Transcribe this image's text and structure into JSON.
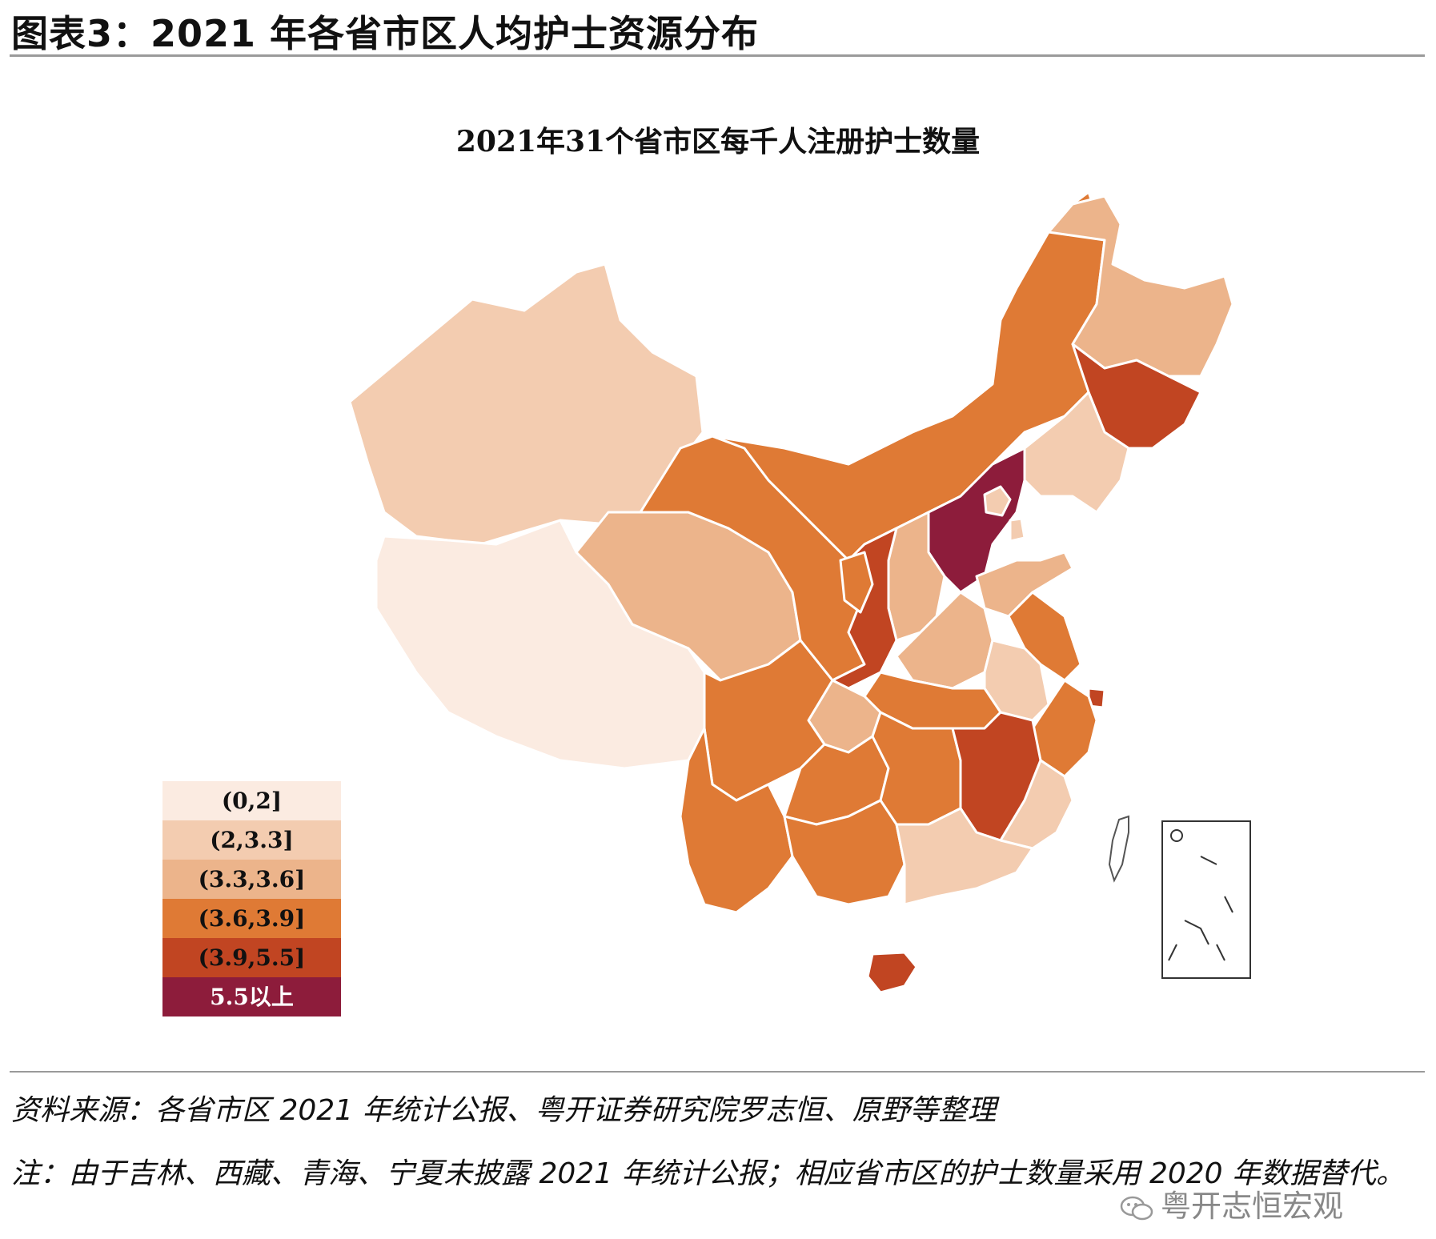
{
  "figure": {
    "title": "图表3：2021 年各省市区人均护士资源分布"
  },
  "map": {
    "title": "2021年31个省市区每千人注册护士数量",
    "legend": [
      {
        "label": "(0,2]",
        "color": "#fbebe1"
      },
      {
        "label": "(2,3.3]",
        "color": "#f3ccb0"
      },
      {
        "label": "(3.3,3.6]",
        "color": "#ecb48b"
      },
      {
        "label": "(3.6,3.9]",
        "color": "#df7a35"
      },
      {
        "label": "(3.9,5.5]",
        "color": "#c14522"
      },
      {
        "label": "5.5以上",
        "color": "#8d1c3b"
      }
    ],
    "regions": [
      {
        "name": "新疆",
        "class": 1
      },
      {
        "name": "西藏",
        "class": 0
      },
      {
        "name": "青海",
        "class": 2
      },
      {
        "name": "甘肃",
        "class": 3
      },
      {
        "name": "内蒙古",
        "class": 3
      },
      {
        "name": "黑龙江",
        "class": 2
      },
      {
        "name": "吉林",
        "class": 4
      },
      {
        "name": "辽宁",
        "class": 1
      },
      {
        "name": "北京",
        "class": 5
      },
      {
        "name": "天津",
        "class": 1
      },
      {
        "name": "河北",
        "class": 1
      },
      {
        "name": "山西",
        "class": 2
      },
      {
        "name": "陕西",
        "class": 4
      },
      {
        "name": "宁夏",
        "class": 3
      },
      {
        "name": "山东",
        "class": 2
      },
      {
        "name": "河南",
        "class": 2
      },
      {
        "name": "江苏",
        "class": 3
      },
      {
        "name": "安徽",
        "class": 1
      },
      {
        "name": "上海",
        "class": 4
      },
      {
        "name": "浙江",
        "class": 3
      },
      {
        "name": "湖北",
        "class": 3
      },
      {
        "name": "重庆",
        "class": 2
      },
      {
        "name": "四川",
        "class": 3
      },
      {
        "name": "云南",
        "class": 3
      },
      {
        "name": "贵州",
        "class": 3
      },
      {
        "name": "湖南",
        "class": 3
      },
      {
        "name": "江西",
        "class": 4
      },
      {
        "name": "福建",
        "class": 1
      },
      {
        "name": "广西",
        "class": 3
      },
      {
        "name": "广东",
        "class": 1
      },
      {
        "name": "海南",
        "class": 4
      }
    ]
  },
  "footer": {
    "source": "资料来源：各省市区 2021 年统计公报、粤开证券研究院罗志恒、原野等整理",
    "note": "注：由于吉林、西藏、青海、宁夏未披露 2021 年统计公报；相应省市区的护士数量采用 2020 年数据替代。",
    "watermark": "粤开志恒宏观"
  }
}
